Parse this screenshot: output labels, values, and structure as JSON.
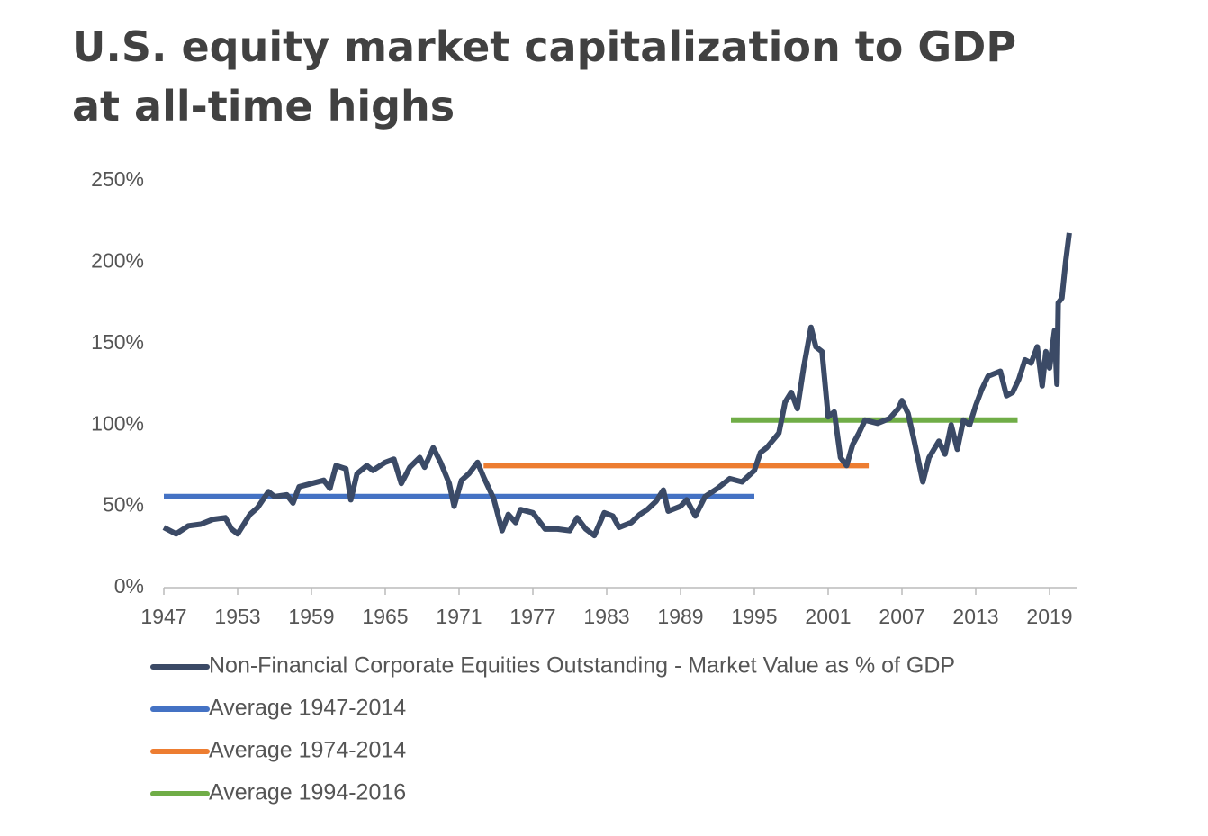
{
  "chart_data": {
    "type": "line",
    "title_lines": [
      "U.S. equity market capitalization to GDP",
      "at all-time highs"
    ],
    "xlim": [
      1947,
      2021
    ],
    "xticks": [
      1947,
      1953,
      1959,
      1965,
      1971,
      1977,
      1983,
      1989,
      1995,
      2001,
      2007,
      2013,
      2019
    ],
    "ylim": [
      0,
      250
    ],
    "yticks": [
      {
        "value": 0,
        "label": "0%"
      },
      {
        "value": 50,
        "label": "50%"
      },
      {
        "value": 100,
        "label": "100%"
      },
      {
        "value": 150,
        "label": "150%"
      },
      {
        "value": 200,
        "label": "200%"
      },
      {
        "value": 250,
        "label": "250%"
      }
    ],
    "series": [
      {
        "name": "Non-Financial Corporate Equities Outstanding - Market Value as % of GDP",
        "color": "#3b4a66",
        "x": [
          1947,
          1948,
          1949,
          1950,
          1951,
          1952,
          1952.5,
          1953,
          1954,
          1954.6,
          1955.5,
          1956,
          1957,
          1957.5,
          1958,
          1959,
          1960,
          1960.5,
          1961,
          1961.8,
          1962.2,
          1962.7,
          1963.5,
          1964,
          1965,
          1965.7,
          1966.3,
          1967,
          1967.8,
          1968.2,
          1968.9,
          1969.5,
          1970.2,
          1970.6,
          1971.2,
          1971.8,
          1972.5,
          1973,
          1973.8,
          1974.5,
          1975,
          1975.6,
          1976,
          1977,
          1978,
          1979,
          1980,
          1980.6,
          1981.3,
          1982,
          1982.8,
          1983.5,
          1984,
          1985,
          1985.7,
          1986.3,
          1987,
          1987.6,
          1988,
          1989,
          1989.5,
          1990.2,
          1991,
          1992,
          1993,
          1994,
          1995,
          1995.5,
          1996,
          1997,
          1997.5,
          1998,
          1998.5,
          1999,
          1999.6,
          2000,
          2000.5,
          2001,
          2001.5,
          2002,
          2002.5,
          2003,
          2003.5,
          2004,
          2005,
          2006,
          2006.7,
          2007,
          2007.5,
          2008,
          2008.7,
          2009.2,
          2010,
          2010.5,
          2011,
          2011.5,
          2012,
          2012.5,
          2013,
          2013.5,
          2014,
          2015,
          2015.5,
          2016,
          2016.5,
          2017,
          2017.5,
          2018,
          2018.4,
          2018.7,
          2019,
          2019.4,
          2019.6,
          2019.7,
          2020,
          2020.3,
          2020.6
        ],
        "values": [
          37,
          33,
          38,
          39,
          42,
          43,
          36,
          33,
          45,
          49,
          59,
          56,
          57,
          52,
          62,
          64,
          66,
          61,
          75,
          73,
          54,
          70,
          75,
          72,
          77,
          79,
          64,
          74,
          80,
          74,
          86,
          77,
          64,
          50,
          66,
          70,
          77,
          68,
          55,
          35,
          45,
          40,
          48,
          46,
          36,
          36,
          35,
          43,
          36,
          32,
          46,
          44,
          37,
          40,
          45,
          48,
          53,
          60,
          47,
          50,
          54,
          44,
          56,
          61,
          67,
          65,
          72,
          83,
          86,
          95,
          114,
          120,
          110,
          135,
          160,
          148,
          145,
          105,
          108,
          80,
          75,
          88,
          95,
          103,
          101,
          104,
          110,
          115,
          107,
          90,
          65,
          80,
          90,
          82,
          100,
          85,
          103,
          100,
          112,
          122,
          130,
          133,
          118,
          120,
          128,
          140,
          138,
          148,
          124,
          145,
          135,
          158,
          125,
          175,
          178,
          200,
          218
        ]
      },
      {
        "name": "Average 1947-2014",
        "color": "#4472c4",
        "x": [
          1947,
          1995
        ],
        "values": [
          56,
          56
        ]
      },
      {
        "name": "Average 1974-2014",
        "color": "#ed7d31",
        "x": [
          1973,
          2004.3
        ],
        "values": [
          75,
          75
        ]
      },
      {
        "name": "Average 1994-2016",
        "color": "#70ad47",
        "x": [
          1993.1,
          2016.4
        ],
        "values": [
          103,
          103
        ]
      }
    ]
  }
}
